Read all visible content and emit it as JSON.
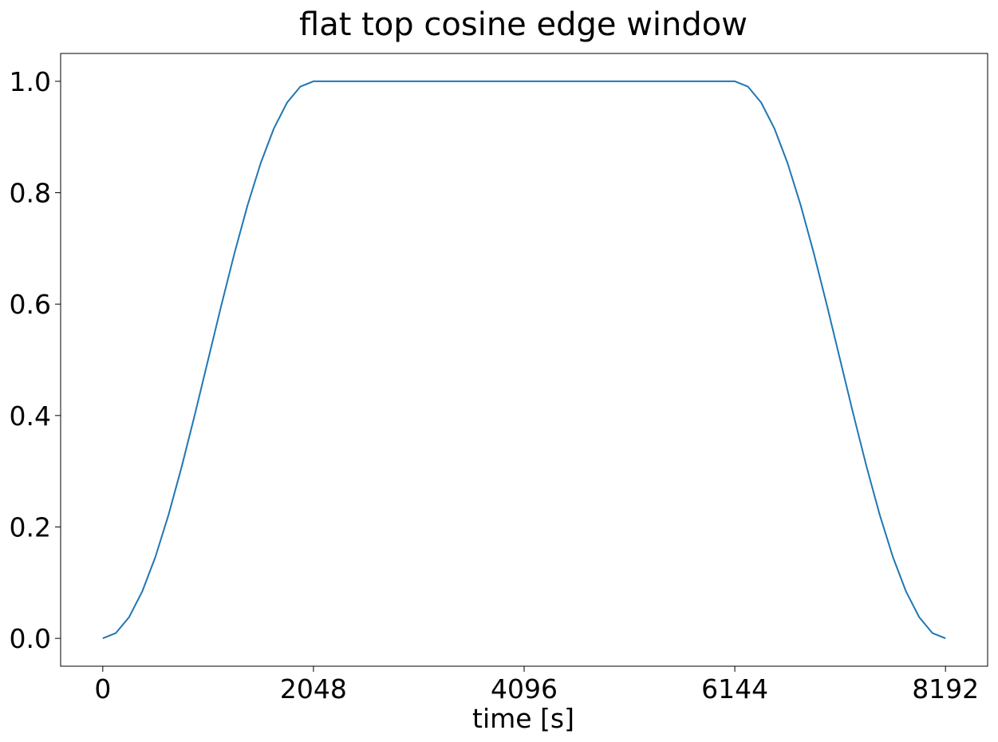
{
  "chart_data": {
    "type": "line",
    "title": "flat top cosine edge window",
    "xlabel": "time [s]",
    "ylabel": "",
    "xlim": [
      -409.6,
      8601.6
    ],
    "ylim": [
      -0.05,
      1.05
    ],
    "xticks": [
      0,
      2048,
      4096,
      6144,
      8192
    ],
    "xtick_labels": [
      "0",
      "2048",
      "4096",
      "6144",
      "8192"
    ],
    "yticks": [
      0.0,
      0.2,
      0.4,
      0.6,
      0.8,
      1.0
    ],
    "ytick_labels": [
      "0.0",
      "0.2",
      "0.4",
      "0.6",
      "0.8",
      "1.0"
    ],
    "grid": false,
    "series": [
      {
        "color": "#1f77b4",
        "x": [
          0,
          128,
          256,
          384,
          512,
          640,
          768,
          896,
          1024,
          1152,
          1280,
          1408,
          1536,
          1664,
          1792,
          1920,
          2048,
          2560,
          3072,
          3584,
          4096,
          4608,
          5120,
          5632,
          6144,
          6272,
          6400,
          6528,
          6656,
          6784,
          6912,
          7040,
          7168,
          7296,
          7424,
          7552,
          7680,
          7808,
          7936,
          8064,
          8192
        ],
        "y": [
          0.0,
          0.0096,
          0.0381,
          0.0843,
          0.1464,
          0.2222,
          0.3087,
          0.4025,
          0.5,
          0.5975,
          0.6913,
          0.7778,
          0.8536,
          0.9157,
          0.9619,
          0.9904,
          1.0,
          1.0,
          1.0,
          1.0,
          1.0,
          1.0,
          1.0,
          1.0,
          1.0,
          0.9904,
          0.9619,
          0.9157,
          0.8536,
          0.7778,
          0.6913,
          0.5975,
          0.5,
          0.4025,
          0.3087,
          0.2222,
          0.1464,
          0.0843,
          0.0381,
          0.0096,
          0.0
        ]
      }
    ]
  }
}
